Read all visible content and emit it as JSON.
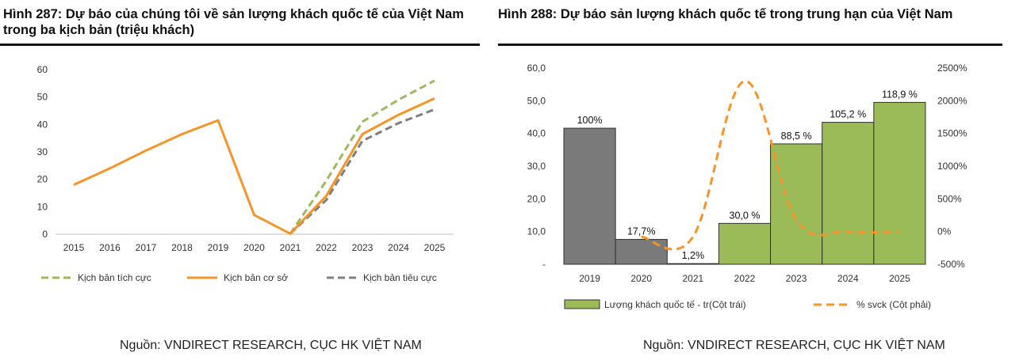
{
  "left": {
    "title": "Hình 287: Dự báo của chúng tôi về sản lượng khách quốc tế của Việt Nam trong ba kịch bản (triệu khách)",
    "source": "Nguồn: VNDIRECT RESEARCH, CỤC HK VIỆT NAM"
  },
  "right": {
    "title": "Hình 288: Dự báo sản lượng khách quốc tế trong trung hạn của Việt Nam",
    "source": "Nguồn: VNDIRECT RESEARCH, CỤC HK VIỆT NAM"
  },
  "colors": {
    "green": "#9bbb59",
    "orange": "#f79428",
    "gray": "#7f7f7f",
    "dark_gray": "#7a7a7a",
    "axis": "#bfbfbf"
  },
  "chart_data": [
    {
      "type": "line",
      "title": "Dự báo của chúng tôi về sản lượng khách quốc tế của Việt Nam trong ba kịch bản (triệu khách)",
      "x": [
        "2015",
        "2016",
        "2017",
        "2018",
        "2019",
        "2020",
        "2021",
        "2022",
        "2023",
        "2024",
        "2025"
      ],
      "ylim": [
        0,
        60
      ],
      "yticks": [
        "0",
        "10",
        "20",
        "30",
        "40",
        "50",
        "60"
      ],
      "legend_position": "bottom",
      "series": [
        {
          "name": "Kịch bản tích cực",
          "style": "dashed",
          "color": "#9bbb59",
          "values": [
            null,
            null,
            null,
            null,
            null,
            null,
            0.2,
            19.5,
            41.0,
            49.0,
            56.0
          ]
        },
        {
          "name": "Kịch bản cơ sở",
          "style": "solid",
          "color": "#f79428",
          "values": [
            18.0,
            24.0,
            30.5,
            36.5,
            41.5,
            7.0,
            0.2,
            14.0,
            36.5,
            43.5,
            49.5
          ]
        },
        {
          "name": "Kịch bản tiêu cực",
          "style": "dashed",
          "color": "#7f7f7f",
          "values": [
            null,
            null,
            null,
            null,
            null,
            null,
            0.2,
            12.5,
            34.0,
            40.5,
            45.5
          ]
        }
      ]
    },
    {
      "type": "bar",
      "title": "Dự báo sản lượng khách quốc tế trong trung hạn của Việt Nam",
      "categories": [
        "2019",
        "2020",
        "2021",
        "2022",
        "2023",
        "2024",
        "2025"
      ],
      "y_left_ticks": [
        "-",
        "10,0",
        "20,0",
        "30,0",
        "40,0",
        "50,0",
        "60,0"
      ],
      "y_left_range": [
        0,
        60
      ],
      "y_right_ticks": [
        "-500%",
        "0%",
        "500%",
        "1000%",
        "1500%",
        "2000%",
        "2500%"
      ],
      "y_right_range": [
        -500,
        2500
      ],
      "legend_position": "bottom",
      "series": [
        {
          "name": "Lượng khách  quốc tế - tr(Cột trái)",
          "axis": "left",
          "values": [
            41.6,
            7.6,
            0.2,
            12.5,
            36.8,
            43.4,
            49.5
          ],
          "colors": [
            "#7a7a7a",
            "#7a7a7a",
            "#7a7a7a",
            "#9bbb59",
            "#9bbb59",
            "#9bbb59",
            "#9bbb59"
          ],
          "labels": [
            "100%",
            "17,7%",
            "1,2%",
            "30,0 %",
            "88,5 %",
            "105,2 %",
            "118,9 %"
          ]
        },
        {
          "name": "% svck (Cột phải)",
          "axis": "right",
          "style": "dashed",
          "color": "#f79428",
          "values": [
            null,
            -80,
            -80,
            2300,
            180,
            0,
            0
          ]
        }
      ]
    }
  ]
}
